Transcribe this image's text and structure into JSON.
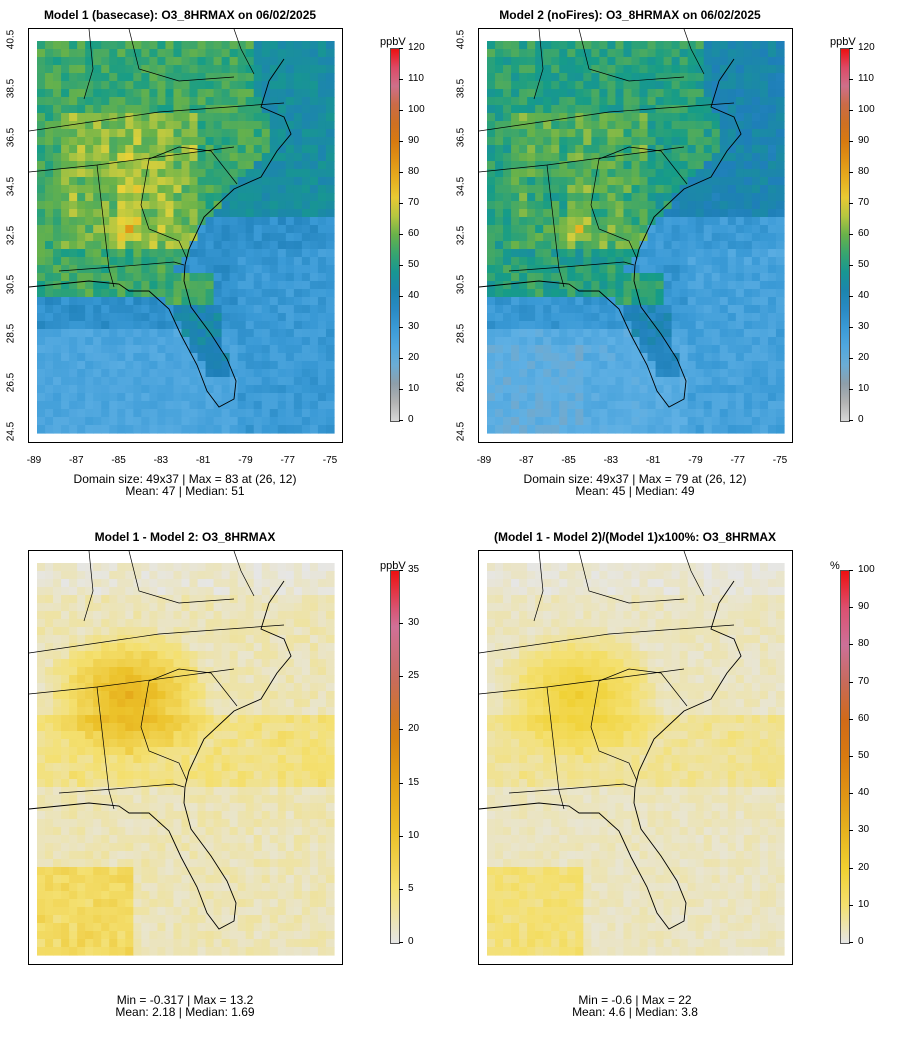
{
  "panels": [
    {
      "title": "Model 1 (basecase): O3_8HRMAX on 06/02/2025",
      "stat1": "Domain size: 49x37 | Max = 83 at (26, 12)",
      "stat2": "Mean: 47 |  Median: 51",
      "unit": "ppbV",
      "scale": [
        "0",
        "10",
        "20",
        "30",
        "40",
        "50",
        "60",
        "70",
        "80",
        "90",
        "100",
        "110",
        "120"
      ],
      "yticks": [
        "40.5",
        "38.5",
        "36.5",
        "34.5",
        "32.5",
        "30.5",
        "28.5",
        "26.5",
        "24.5"
      ],
      "xticks": [
        "-89",
        "-87",
        "-85",
        "-83",
        "-81",
        "-79",
        "-77",
        "-75"
      ]
    },
    {
      "title": "Model 2 (noFires): O3_8HRMAX on 06/02/2025",
      "stat1": "Domain size: 49x37 | Max = 79 at (26, 12)",
      "stat2": "Mean: 45 |  Median: 49",
      "unit": "ppbV",
      "scale": [
        "0",
        "10",
        "20",
        "30",
        "40",
        "50",
        "60",
        "70",
        "80",
        "90",
        "100",
        "110",
        "120"
      ],
      "yticks": [
        "40.5",
        "38.5",
        "36.5",
        "34.5",
        "32.5",
        "30.5",
        "28.5",
        "26.5",
        "24.5"
      ],
      "xticks": [
        "-89",
        "-87",
        "-85",
        "-83",
        "-81",
        "-79",
        "-77",
        "-75"
      ]
    },
    {
      "title": "Model 1 - Model 2: O3_8HRMAX",
      "stat1": "Min = -0.317 | Max = 13.2",
      "stat2": "Mean: 2.18 |  Median: 1.69",
      "unit": "ppbV",
      "scale": [
        "0",
        "5",
        "10",
        "15",
        "20",
        "25",
        "30",
        "35"
      ]
    },
    {
      "title": "(Model 1 - Model 2)/(Model 1)x100%: O3_8HRMAX",
      "stat1": "Min = -0.6 | Max = 22",
      "stat2": "Mean: 4.6 |  Median: 3.8",
      "unit": "%",
      "scale": [
        "0",
        "10",
        "20",
        "30",
        "40",
        "50",
        "60",
        "70",
        "80",
        "90",
        "100"
      ]
    }
  ],
  "colors": {
    "ocean_low": "#5aaee0",
    "mid_blue": "#2a8cc2",
    "teal": "#1e9a88",
    "green": "#4aa85a",
    "yellow_green": "#a8c83a",
    "yellow": "#f0d832",
    "orange": "#e09016",
    "diff_bg": "#e6e6e6",
    "diff_yellow": "#f6e060",
    "diff_orange": "#e8a020"
  }
}
